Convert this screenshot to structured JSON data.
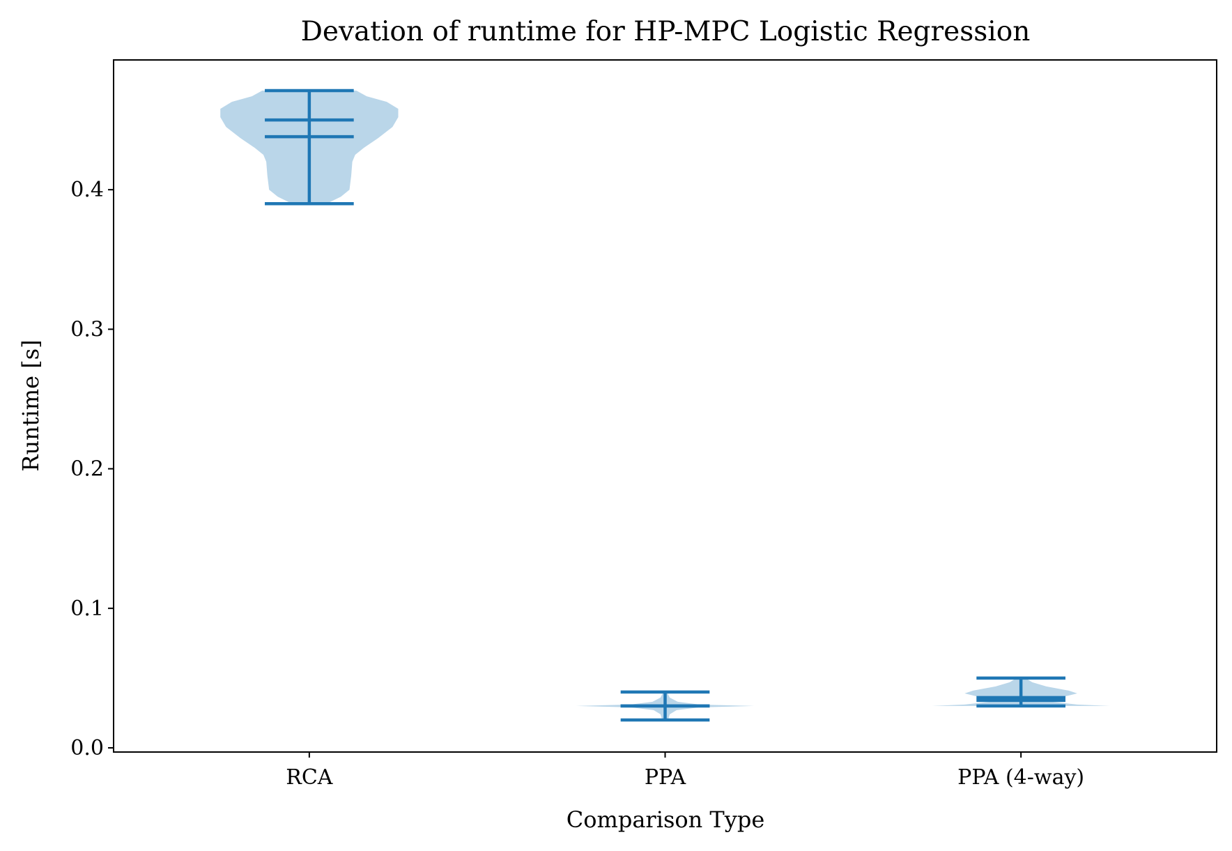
{
  "chart_data": {
    "type": "violin",
    "title": "Devation of runtime for HP-MPC Logistic Regression",
    "xlabel": "Comparison Type",
    "ylabel": "Runtime [s]",
    "ylim": [
      -0.003,
      0.493
    ],
    "yticks": [
      0.0,
      0.1,
      0.2,
      0.3,
      0.4
    ],
    "ytick_labels": [
      "0.0",
      "0.1",
      "0.2",
      "0.3",
      "0.4"
    ],
    "categories": [
      "RCA",
      "PPA",
      "PPA (4-way)"
    ],
    "grid": false,
    "colors": {
      "body": "#bad6e9",
      "lines": "#1f77b4"
    },
    "violins": [
      {
        "category": "RCA",
        "min": 0.39,
        "max": 0.471,
        "mean": 0.45,
        "median": 0.438,
        "density": [
          [
            0.39,
            0.3
          ],
          [
            0.395,
            0.55
          ],
          [
            0.4,
            0.7
          ],
          [
            0.41,
            0.73
          ],
          [
            0.42,
            0.75
          ],
          [
            0.425,
            0.8
          ],
          [
            0.43,
            0.95
          ],
          [
            0.437,
            1.2
          ],
          [
            0.445,
            1.45
          ],
          [
            0.452,
            1.55
          ],
          [
            0.458,
            1.55
          ],
          [
            0.463,
            1.35
          ],
          [
            0.467,
            1.0
          ],
          [
            0.471,
            0.82
          ]
        ]
      },
      {
        "category": "PPA",
        "min": 0.02,
        "max": 0.04,
        "mean": 0.03,
        "median": 0.03,
        "density": [
          [
            0.02,
            0.05
          ],
          [
            0.024,
            0.08
          ],
          [
            0.027,
            0.2
          ],
          [
            0.029,
            0.6
          ],
          [
            0.03,
            1.55
          ],
          [
            0.031,
            0.6
          ],
          [
            0.033,
            0.22
          ],
          [
            0.036,
            0.08
          ],
          [
            0.04,
            0.03
          ]
        ]
      },
      {
        "category": "PPA (4-way)",
        "min": 0.03,
        "max": 0.05,
        "mean": 0.036,
        "median": 0.034,
        "density": [
          [
            0.03,
            1.58
          ],
          [
            0.031,
            1.0
          ],
          [
            0.033,
            0.55
          ],
          [
            0.035,
            0.55
          ],
          [
            0.037,
            0.8
          ],
          [
            0.039,
            1.0
          ],
          [
            0.041,
            0.85
          ],
          [
            0.044,
            0.45
          ],
          [
            0.047,
            0.2
          ],
          [
            0.05,
            0.08
          ]
        ]
      }
    ]
  }
}
